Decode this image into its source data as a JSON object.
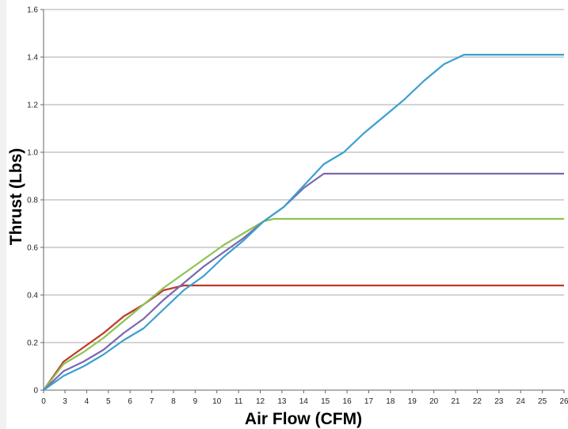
{
  "chart_data": {
    "type": "line",
    "title": "",
    "xlabel": "Air Flow (CFM)",
    "ylabel": "Thrust (Lbs)",
    "xlim": [
      0,
      26
    ],
    "ylim": [
      0,
      1.6
    ],
    "grid": true,
    "x_ticks": [
      "0",
      "3",
      "4",
      "5",
      "6",
      "7",
      "8",
      "9",
      "10",
      "11",
      "12",
      "13",
      "14",
      "15",
      "16",
      "17",
      "18",
      "19",
      "20",
      "21",
      "22",
      "23",
      "24",
      "25",
      "26"
    ],
    "y_ticks": [
      "0",
      "0.2",
      "0.4",
      "0.6",
      "0.8",
      "1.0",
      "1.2",
      "1.4",
      "1.6"
    ],
    "series": [
      {
        "color": "#c0392b",
        "points": [
          [
            0,
            0
          ],
          [
            1,
            0.12
          ],
          [
            2,
            0.18
          ],
          [
            3,
            0.24
          ],
          [
            4,
            0.31
          ],
          [
            5,
            0.36
          ],
          [
            6,
            0.42
          ],
          [
            7,
            0.44
          ],
          [
            7.5,
            0.44
          ],
          [
            26,
            0.44
          ]
        ]
      },
      {
        "color": "#8dc451",
        "points": [
          [
            0,
            0
          ],
          [
            1,
            0.11
          ],
          [
            2,
            0.16
          ],
          [
            3,
            0.22
          ],
          [
            4,
            0.29
          ],
          [
            5,
            0.36
          ],
          [
            6,
            0.43
          ],
          [
            7,
            0.49
          ],
          [
            8,
            0.55
          ],
          [
            9,
            0.61
          ],
          [
            10,
            0.66
          ],
          [
            11,
            0.71
          ],
          [
            11.5,
            0.72
          ],
          [
            26,
            0.72
          ]
        ]
      },
      {
        "color": "#7b68ad",
        "points": [
          [
            0,
            0
          ],
          [
            1,
            0.08
          ],
          [
            2,
            0.12
          ],
          [
            3,
            0.17
          ],
          [
            4,
            0.24
          ],
          [
            5,
            0.3
          ],
          [
            6,
            0.38
          ],
          [
            7,
            0.45
          ],
          [
            8,
            0.52
          ],
          [
            9,
            0.58
          ],
          [
            10,
            0.64
          ],
          [
            11,
            0.71
          ],
          [
            12,
            0.77
          ],
          [
            13,
            0.85
          ],
          [
            14,
            0.91
          ],
          [
            26,
            0.91
          ]
        ]
      },
      {
        "color": "#3aa0d0",
        "points": [
          [
            0,
            0
          ],
          [
            1,
            0.06
          ],
          [
            2,
            0.1
          ],
          [
            3,
            0.15
          ],
          [
            4,
            0.21
          ],
          [
            5,
            0.26
          ],
          [
            6,
            0.34
          ],
          [
            7,
            0.42
          ],
          [
            8,
            0.48
          ],
          [
            9,
            0.56
          ],
          [
            10,
            0.63
          ],
          [
            11,
            0.71
          ],
          [
            12,
            0.77
          ],
          [
            13,
            0.86
          ],
          [
            14,
            0.95
          ],
          [
            15,
            1.0
          ],
          [
            16,
            1.08
          ],
          [
            17,
            1.15
          ],
          [
            18,
            1.22
          ],
          [
            19,
            1.3
          ],
          [
            20,
            1.37
          ],
          [
            21,
            1.41
          ],
          [
            22,
            1.41
          ],
          [
            26,
            1.41
          ]
        ]
      }
    ]
  }
}
